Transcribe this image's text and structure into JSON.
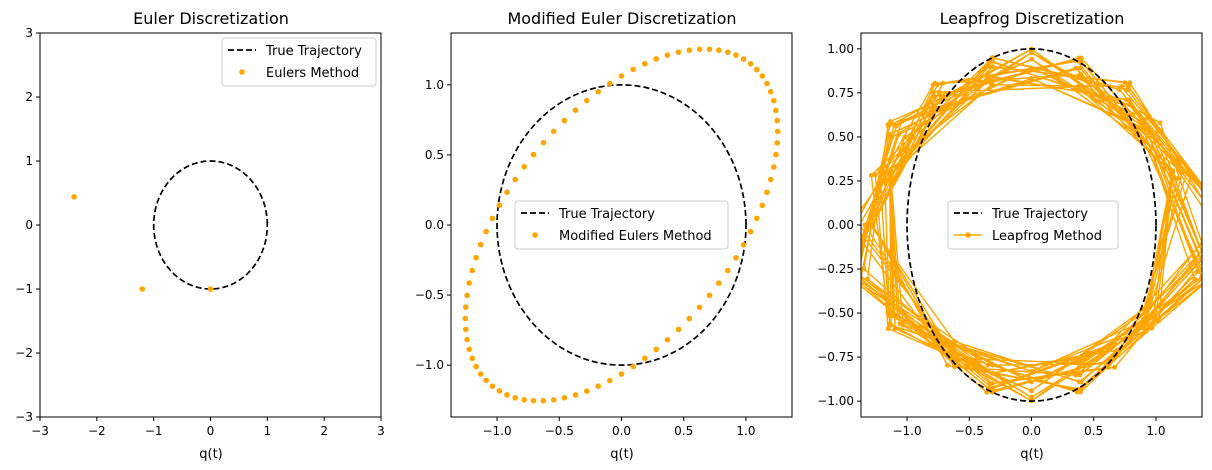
{
  "chart_data": [
    {
      "type": "scatter",
      "title": "Euler Discretization",
      "xlabel": "q(t)",
      "ylabel": "",
      "xlim": [
        -3,
        3
      ],
      "ylim": [
        -3,
        3
      ],
      "xticks": [
        -3,
        -2,
        -1,
        0,
        1,
        2,
        3
      ],
      "yticks": [
        -3,
        -2,
        -1,
        0,
        1,
        2,
        3
      ],
      "legend_position": "top-right",
      "colors": {
        "true": "#000000",
        "method": "#FFA500"
      },
      "series": [
        {
          "name": "True Trajectory",
          "kind": "dashed-line",
          "x": [],
          "y": []
        },
        {
          "name": "Eulers Method",
          "kind": "points",
          "x": [
            0.0,
            -1.2,
            -2.4
          ],
          "y": [
            -1.0,
            -1.0,
            0.44
          ]
        }
      ]
    },
    {
      "type": "scatter",
      "title": "Modified Euler Discretization",
      "xlabel": "q(t)",
      "ylabel": "",
      "xlim": [
        -1.37,
        1.37
      ],
      "ylim": [
        -1.37,
        1.37
      ],
      "xticks": [
        -1.0,
        -0.5,
        0.0,
        0.5,
        1.0
      ],
      "yticks": [
        -1.0,
        -0.5,
        0.0,
        0.5,
        1.0
      ],
      "tick_format": "one-decimal",
      "legend_position": "center",
      "colors": {
        "true": "#000000",
        "method": "#FFA500"
      },
      "series": [
        {
          "name": "True Trajectory",
          "kind": "dashed-line",
          "x": [],
          "y": []
        },
        {
          "name": "Modified Eulers Method",
          "kind": "points",
          "x": [],
          "y": []
        }
      ]
    },
    {
      "type": "line",
      "title": "Leapfrog Discretization",
      "xlabel": "q(t)",
      "ylabel": "",
      "xlim": [
        -1.37,
        1.37
      ],
      "ylim": [
        -1.09,
        1.09
      ],
      "xticks": [
        -1.0,
        -0.5,
        0.0,
        0.5,
        1.0
      ],
      "yticks": [
        -1.0,
        -0.75,
        -0.5,
        -0.25,
        0.0,
        0.25,
        0.5,
        0.75,
        1.0
      ],
      "tick_format": "two-decimal-y",
      "legend_position": "center",
      "colors": {
        "true": "#000000",
        "method": "#FFA500"
      },
      "series": [
        {
          "name": "True Trajectory",
          "kind": "dashed-line",
          "x": [],
          "y": []
        },
        {
          "name": "Leapfrog Method",
          "kind": "line-markers",
          "x": [],
          "y": []
        }
      ]
    }
  ]
}
